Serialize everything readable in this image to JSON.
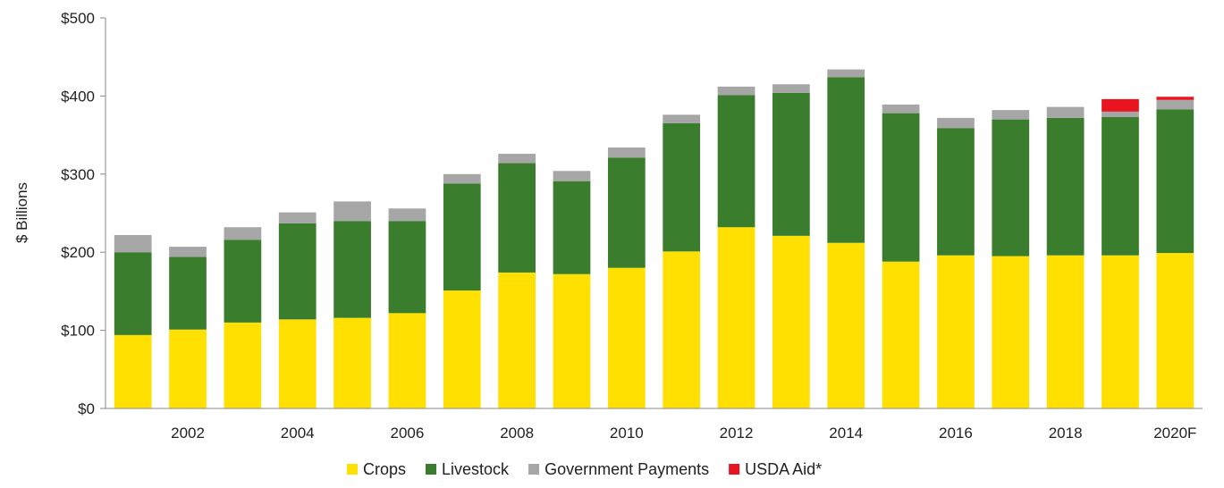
{
  "chart_data": {
    "type": "bar",
    "stacked": true,
    "ylabel": "$ Billions",
    "ylim": [
      0,
      500
    ],
    "yticks": [
      "$0",
      "$100",
      "$200",
      "$300",
      "$400",
      "$500"
    ],
    "ytick_values": [
      0,
      100,
      200,
      300,
      400,
      500
    ],
    "grid": false,
    "legend_position": "bottom",
    "categories": [
      "2001",
      "2002",
      "2003",
      "2004",
      "2005",
      "2006",
      "2007",
      "2008",
      "2009",
      "2010",
      "2011",
      "2012",
      "2013",
      "2014",
      "2015",
      "2016",
      "2017",
      "2018",
      "2019",
      "2020F"
    ],
    "xtick_labels": [
      "",
      "2002",
      "",
      "2004",
      "",
      "2006",
      "",
      "2008",
      "",
      "2010",
      "",
      "2012",
      "",
      "2014",
      "",
      "2016",
      "",
      "2018",
      "",
      "2020F"
    ],
    "series": [
      {
        "name": "Crops",
        "color": "#FFE000",
        "values": [
          94,
          101,
          110,
          114,
          116,
          122,
          151,
          174,
          172,
          180,
          201,
          232,
          221,
          212,
          188,
          196,
          195,
          196,
          196,
          199
        ]
      },
      {
        "name": "Livestock",
        "color": "#3A7D2C",
        "values": [
          106,
          93,
          106,
          123,
          124,
          118,
          137,
          140,
          119,
          141,
          164,
          169,
          183,
          212,
          190,
          163,
          175,
          176,
          177,
          184
        ]
      },
      {
        "name": "Government Payments",
        "color": "#A6A6A6",
        "values": [
          22,
          13,
          16,
          14,
          25,
          16,
          12,
          12,
          13,
          13,
          11,
          11,
          11,
          10,
          11,
          13,
          12,
          14,
          7,
          12
        ]
      },
      {
        "name": "USDA Aid*",
        "color": "#E8141E",
        "values": [
          0,
          0,
          0,
          0,
          0,
          0,
          0,
          0,
          0,
          0,
          0,
          0,
          0,
          0,
          0,
          0,
          0,
          0,
          16,
          4
        ]
      }
    ]
  }
}
